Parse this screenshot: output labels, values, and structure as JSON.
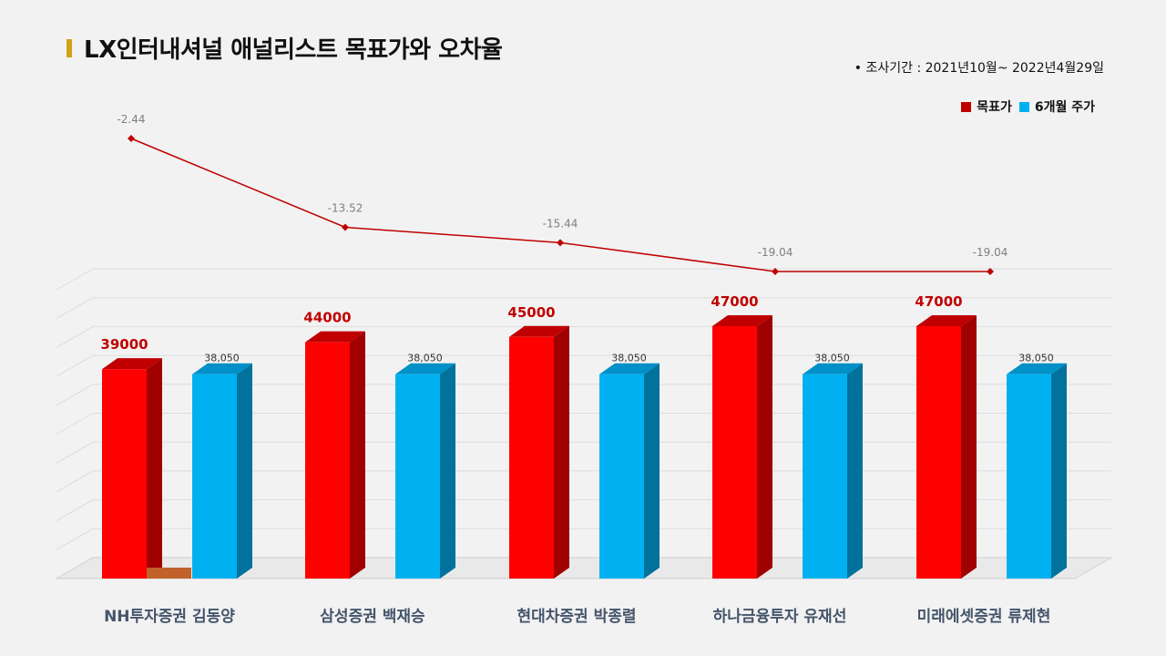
{
  "title": "LX인터내셔널 애널리스트 목표가와 오차율",
  "period": "•  조사기간 : 2021년10월~ 2022년4월29일",
  "legend": {
    "target": "목표가",
    "price": "6개월 주가",
    "target_color": "#c00000",
    "price_color": "#00b0f0"
  },
  "chart_data": {
    "type": "bar",
    "categories": [
      "NH투자증권 김동양",
      "삼성증권 백재승",
      "현대차증권 박종렬",
      "하나금융투자 유재선",
      "미래에셋증권 류제현"
    ],
    "series": [
      {
        "name": "목표가",
        "values": [
          39000,
          44000,
          45000,
          47000,
          47000
        ],
        "labels": [
          "39000",
          "44000",
          "45000",
          "47000",
          "47000"
        ],
        "color": "#ff0000"
      },
      {
        "name": "6개월 주가",
        "values": [
          38050,
          38050,
          38050,
          38050,
          38050
        ],
        "labels": [
          "38,050",
          "38,050",
          "38,050",
          "38,050",
          "38,050"
        ],
        "color": "#00b0f0"
      }
    ],
    "error_rate": {
      "type": "line",
      "values": [
        -2.44,
        -13.52,
        -15.44,
        -19.04,
        -19.04
      ],
      "labels": [
        "-2.44",
        "-13.52",
        "-15.44",
        "-19.04",
        "-19.04"
      ],
      "color": "#c00000"
    }
  }
}
